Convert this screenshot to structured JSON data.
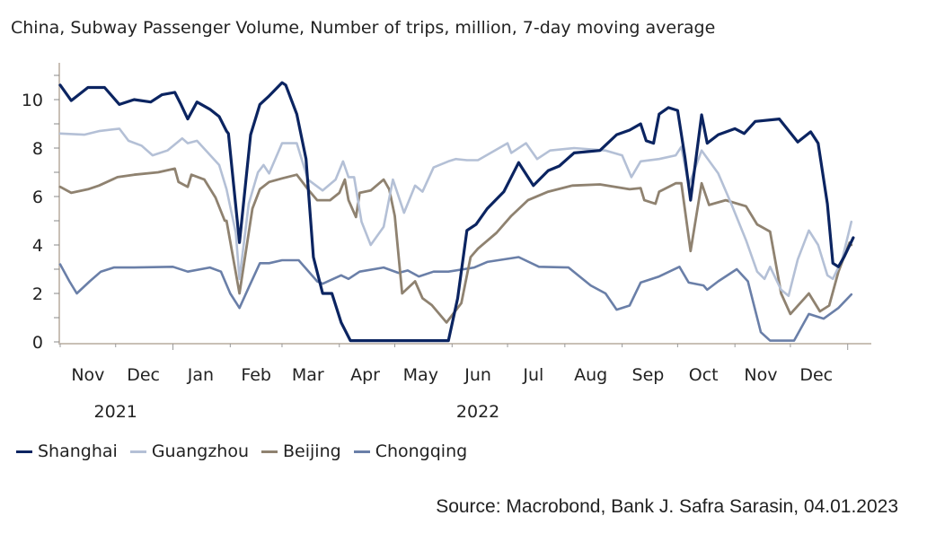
{
  "chart_data": {
    "type": "line",
    "title": "China, Subway Passenger Volume, Number of trips, million, 7-day moving average",
    "xlabel": "",
    "ylabel": "",
    "x_unit": "days since 2021-11-01",
    "xlim": [
      0,
      430
    ],
    "ylim": [
      0,
      11
    ],
    "y_ticks": [
      0,
      2,
      4,
      6,
      8,
      10
    ],
    "x_tick_labels": [
      {
        "label": "Nov",
        "day": 15
      },
      {
        "label": "Dec",
        "day": 45
      },
      {
        "label": "Jan",
        "day": 76
      },
      {
        "label": "Feb",
        "day": 106
      },
      {
        "label": "Mar",
        "day": 134
      },
      {
        "label": "Apr",
        "day": 165
      },
      {
        "label": "May",
        "day": 195
      },
      {
        "label": "Jun",
        "day": 226
      },
      {
        "label": "Jul",
        "day": 256
      },
      {
        "label": "Aug",
        "day": 287
      },
      {
        "label": "Sep",
        "day": 318
      },
      {
        "label": "Oct",
        "day": 348
      },
      {
        "label": "Nov",
        "day": 379
      },
      {
        "label": "Dec",
        "day": 409
      }
    ],
    "month_starts": [
      0,
      30,
      61,
      92,
      120,
      151,
      181,
      212,
      242,
      273,
      304,
      334,
      365,
      395,
      426
    ],
    "year_labels": [
      {
        "label": "2021",
        "day": 30
      },
      {
        "label": "2022",
        "day": 226
      }
    ],
    "grid": false,
    "legend_position": "bottom-left",
    "series": [
      {
        "name": "Shanghai",
        "color": "#0b2461",
        "width": 3.2,
        "points": [
          [
            0,
            10.6
          ],
          [
            6,
            9.96
          ],
          [
            15,
            10.5
          ],
          [
            24,
            10.5
          ],
          [
            32,
            9.8
          ],
          [
            40,
            10.0
          ],
          [
            49,
            9.9
          ],
          [
            55,
            10.2
          ],
          [
            62,
            10.3
          ],
          [
            65,
            9.85
          ],
          [
            69,
            9.2
          ],
          [
            74,
            9.9
          ],
          [
            81,
            9.6
          ],
          [
            86,
            9.3
          ],
          [
            90,
            8.7
          ],
          [
            91,
            8.6
          ],
          [
            97,
            4.1
          ],
          [
            103,
            8.55
          ],
          [
            108,
            9.8
          ],
          [
            113,
            10.15
          ],
          [
            120,
            10.7
          ],
          [
            122,
            10.6
          ],
          [
            128,
            9.4
          ],
          [
            133,
            7.55
          ],
          [
            137,
            3.5
          ],
          [
            142,
            2.0
          ],
          [
            147,
            2.0
          ],
          [
            152,
            0.8
          ],
          [
            157,
            0.05
          ],
          [
            210,
            0.05
          ],
          [
            215,
            1.8
          ],
          [
            220,
            4.6
          ],
          [
            225,
            4.85
          ],
          [
            231,
            5.5
          ],
          [
            240,
            6.2
          ],
          [
            248,
            7.4
          ],
          [
            256,
            6.45
          ],
          [
            264,
            7.07
          ],
          [
            270,
            7.26
          ],
          [
            278,
            7.8
          ],
          [
            292,
            7.9
          ],
          [
            301,
            8.55
          ],
          [
            308,
            8.74
          ],
          [
            314,
            9.0
          ],
          [
            317,
            8.3
          ],
          [
            321,
            8.2
          ],
          [
            324,
            9.4
          ],
          [
            329,
            9.67
          ],
          [
            334,
            9.55
          ],
          [
            338,
            7.6
          ],
          [
            341,
            5.85
          ],
          [
            347,
            9.37
          ],
          [
            350,
            8.2
          ],
          [
            356,
            8.55
          ],
          [
            365,
            8.8
          ],
          [
            370,
            8.6
          ],
          [
            376,
            9.1
          ],
          [
            389,
            9.2
          ],
          [
            399,
            8.25
          ],
          [
            406,
            8.67
          ],
          [
            410,
            8.2
          ],
          [
            415,
            5.7
          ],
          [
            418,
            3.25
          ],
          [
            421,
            3.1
          ],
          [
            424,
            3.5
          ],
          [
            429,
            4.3
          ]
        ]
      },
      {
        "name": "Guangzhou",
        "color": "#b4c0d6",
        "width": 2.6,
        "points": [
          [
            0,
            8.6
          ],
          [
            13,
            8.55
          ],
          [
            21,
            8.7
          ],
          [
            32,
            8.8
          ],
          [
            37,
            8.3
          ],
          [
            44,
            8.1
          ],
          [
            50,
            7.7
          ],
          [
            58,
            7.9
          ],
          [
            66,
            8.4
          ],
          [
            69,
            8.2
          ],
          [
            74,
            8.3
          ],
          [
            86,
            7.3
          ],
          [
            90,
            6.3
          ],
          [
            95,
            4.5
          ],
          [
            97,
            2.6
          ],
          [
            102,
            5.7
          ],
          [
            107,
            7.0
          ],
          [
            110,
            7.3
          ],
          [
            113,
            6.95
          ],
          [
            120,
            8.2
          ],
          [
            128,
            8.2
          ],
          [
            134,
            6.7
          ],
          [
            142,
            6.25
          ],
          [
            149,
            6.7
          ],
          [
            153,
            7.45
          ],
          [
            156,
            6.8
          ],
          [
            159,
            6.8
          ],
          [
            163,
            4.96
          ],
          [
            168,
            4.0
          ],
          [
            175,
            4.75
          ],
          [
            180,
            6.7
          ],
          [
            186,
            5.33
          ],
          [
            192,
            6.45
          ],
          [
            196,
            6.2
          ],
          [
            202,
            7.2
          ],
          [
            210,
            7.45
          ],
          [
            214,
            7.55
          ],
          [
            220,
            7.5
          ],
          [
            226,
            7.5
          ],
          [
            242,
            8.2
          ],
          [
            244,
            7.8
          ],
          [
            252,
            8.2
          ],
          [
            258,
            7.55
          ],
          [
            265,
            7.9
          ],
          [
            278,
            8.0
          ],
          [
            295,
            7.9
          ],
          [
            304,
            7.7
          ],
          [
            309,
            6.8
          ],
          [
            314,
            7.45
          ],
          [
            324,
            7.55
          ],
          [
            333,
            7.7
          ],
          [
            336,
            8.05
          ],
          [
            340,
            6.45
          ],
          [
            347,
            7.9
          ],
          [
            356,
            6.95
          ],
          [
            363,
            5.7
          ],
          [
            371,
            4.2
          ],
          [
            377,
            2.9
          ],
          [
            381,
            2.6
          ],
          [
            384,
            3.1
          ],
          [
            390,
            2.15
          ],
          [
            394,
            1.9
          ],
          [
            399,
            3.4
          ],
          [
            405,
            4.6
          ],
          [
            410,
            4.0
          ],
          [
            415,
            2.75
          ],
          [
            418,
            2.6
          ],
          [
            423,
            3.4
          ],
          [
            428,
            4.96
          ]
        ]
      },
      {
        "name": "Beijing",
        "color": "#8f8270",
        "width": 2.8,
        "points": [
          [
            0,
            6.4
          ],
          [
            6,
            6.15
          ],
          [
            15,
            6.3
          ],
          [
            21,
            6.45
          ],
          [
            31,
            6.8
          ],
          [
            40,
            6.9
          ],
          [
            53,
            7.0
          ],
          [
            62,
            7.15
          ],
          [
            64,
            6.6
          ],
          [
            69,
            6.4
          ],
          [
            71,
            6.9
          ],
          [
            78,
            6.7
          ],
          [
            84,
            5.96
          ],
          [
            89,
            5.0
          ],
          [
            90,
            5.0
          ],
          [
            97,
            2.0
          ],
          [
            104,
            5.5
          ],
          [
            108,
            6.3
          ],
          [
            113,
            6.6
          ],
          [
            120,
            6.75
          ],
          [
            128,
            6.9
          ],
          [
            134,
            6.3
          ],
          [
            139,
            5.85
          ],
          [
            146,
            5.85
          ],
          [
            151,
            6.15
          ],
          [
            154,
            6.7
          ],
          [
            156,
            5.85
          ],
          [
            160,
            5.15
          ],
          [
            162,
            6.15
          ],
          [
            168,
            6.25
          ],
          [
            175,
            6.7
          ],
          [
            178,
            6.3
          ],
          [
            181,
            5.2
          ],
          [
            185,
            2.0
          ],
          [
            192,
            2.5
          ],
          [
            196,
            1.8
          ],
          [
            201,
            1.52
          ],
          [
            209,
            0.8
          ],
          [
            215,
            1.4
          ],
          [
            217,
            1.6
          ],
          [
            222,
            3.5
          ],
          [
            226,
            3.85
          ],
          [
            236,
            4.5
          ],
          [
            244,
            5.2
          ],
          [
            253,
            5.85
          ],
          [
            264,
            6.2
          ],
          [
            277,
            6.45
          ],
          [
            292,
            6.5
          ],
          [
            308,
            6.3
          ],
          [
            314,
            6.35
          ],
          [
            316,
            5.85
          ],
          [
            322,
            5.7
          ],
          [
            324,
            6.2
          ],
          [
            333,
            6.55
          ],
          [
            336,
            6.55
          ],
          [
            341,
            3.75
          ],
          [
            347,
            6.55
          ],
          [
            351,
            5.65
          ],
          [
            360,
            5.85
          ],
          [
            371,
            5.6
          ],
          [
            377,
            4.85
          ],
          [
            384,
            4.55
          ],
          [
            390,
            2.0
          ],
          [
            395,
            1.15
          ],
          [
            405,
            2.0
          ],
          [
            411,
            1.26
          ],
          [
            416,
            1.5
          ],
          [
            421,
            2.9
          ],
          [
            427,
            4.1
          ],
          [
            428,
            4.0
          ]
        ]
      },
      {
        "name": "Chongqing",
        "color": "#6a7fa8",
        "width": 2.6,
        "points": [
          [
            0,
            3.2
          ],
          [
            5,
            2.5
          ],
          [
            9,
            2.0
          ],
          [
            16,
            2.5
          ],
          [
            22,
            2.9
          ],
          [
            29,
            3.07
          ],
          [
            40,
            3.07
          ],
          [
            61,
            3.1
          ],
          [
            69,
            2.9
          ],
          [
            81,
            3.07
          ],
          [
            87,
            2.9
          ],
          [
            92,
            2.0
          ],
          [
            97,
            1.4
          ],
          [
            102,
            2.25
          ],
          [
            108,
            3.25
          ],
          [
            113,
            3.25
          ],
          [
            120,
            3.37
          ],
          [
            129,
            3.37
          ],
          [
            139,
            2.5
          ],
          [
            142,
            2.4
          ],
          [
            152,
            2.75
          ],
          [
            156,
            2.6
          ],
          [
            162,
            2.9
          ],
          [
            175,
            3.07
          ],
          [
            183,
            2.85
          ],
          [
            188,
            2.95
          ],
          [
            194,
            2.7
          ],
          [
            202,
            2.9
          ],
          [
            210,
            2.9
          ],
          [
            224,
            3.07
          ],
          [
            231,
            3.3
          ],
          [
            248,
            3.5
          ],
          [
            259,
            3.1
          ],
          [
            275,
            3.07
          ],
          [
            287,
            2.33
          ],
          [
            295,
            2.0
          ],
          [
            301,
            1.33
          ],
          [
            308,
            1.5
          ],
          [
            314,
            2.45
          ],
          [
            324,
            2.7
          ],
          [
            335,
            3.1
          ],
          [
            340,
            2.45
          ],
          [
            348,
            2.33
          ],
          [
            350,
            2.15
          ],
          [
            356,
            2.5
          ],
          [
            366,
            3.0
          ],
          [
            372,
            2.5
          ],
          [
            379,
            0.4
          ],
          [
            384,
            0.05
          ],
          [
            397,
            0.05
          ],
          [
            405,
            1.15
          ],
          [
            413,
            0.96
          ],
          [
            421,
            1.4
          ],
          [
            428,
            1.96
          ]
        ]
      }
    ],
    "source": "Source: Macrobond, Bank J. Safra Sarasin, 04.01.2023"
  }
}
